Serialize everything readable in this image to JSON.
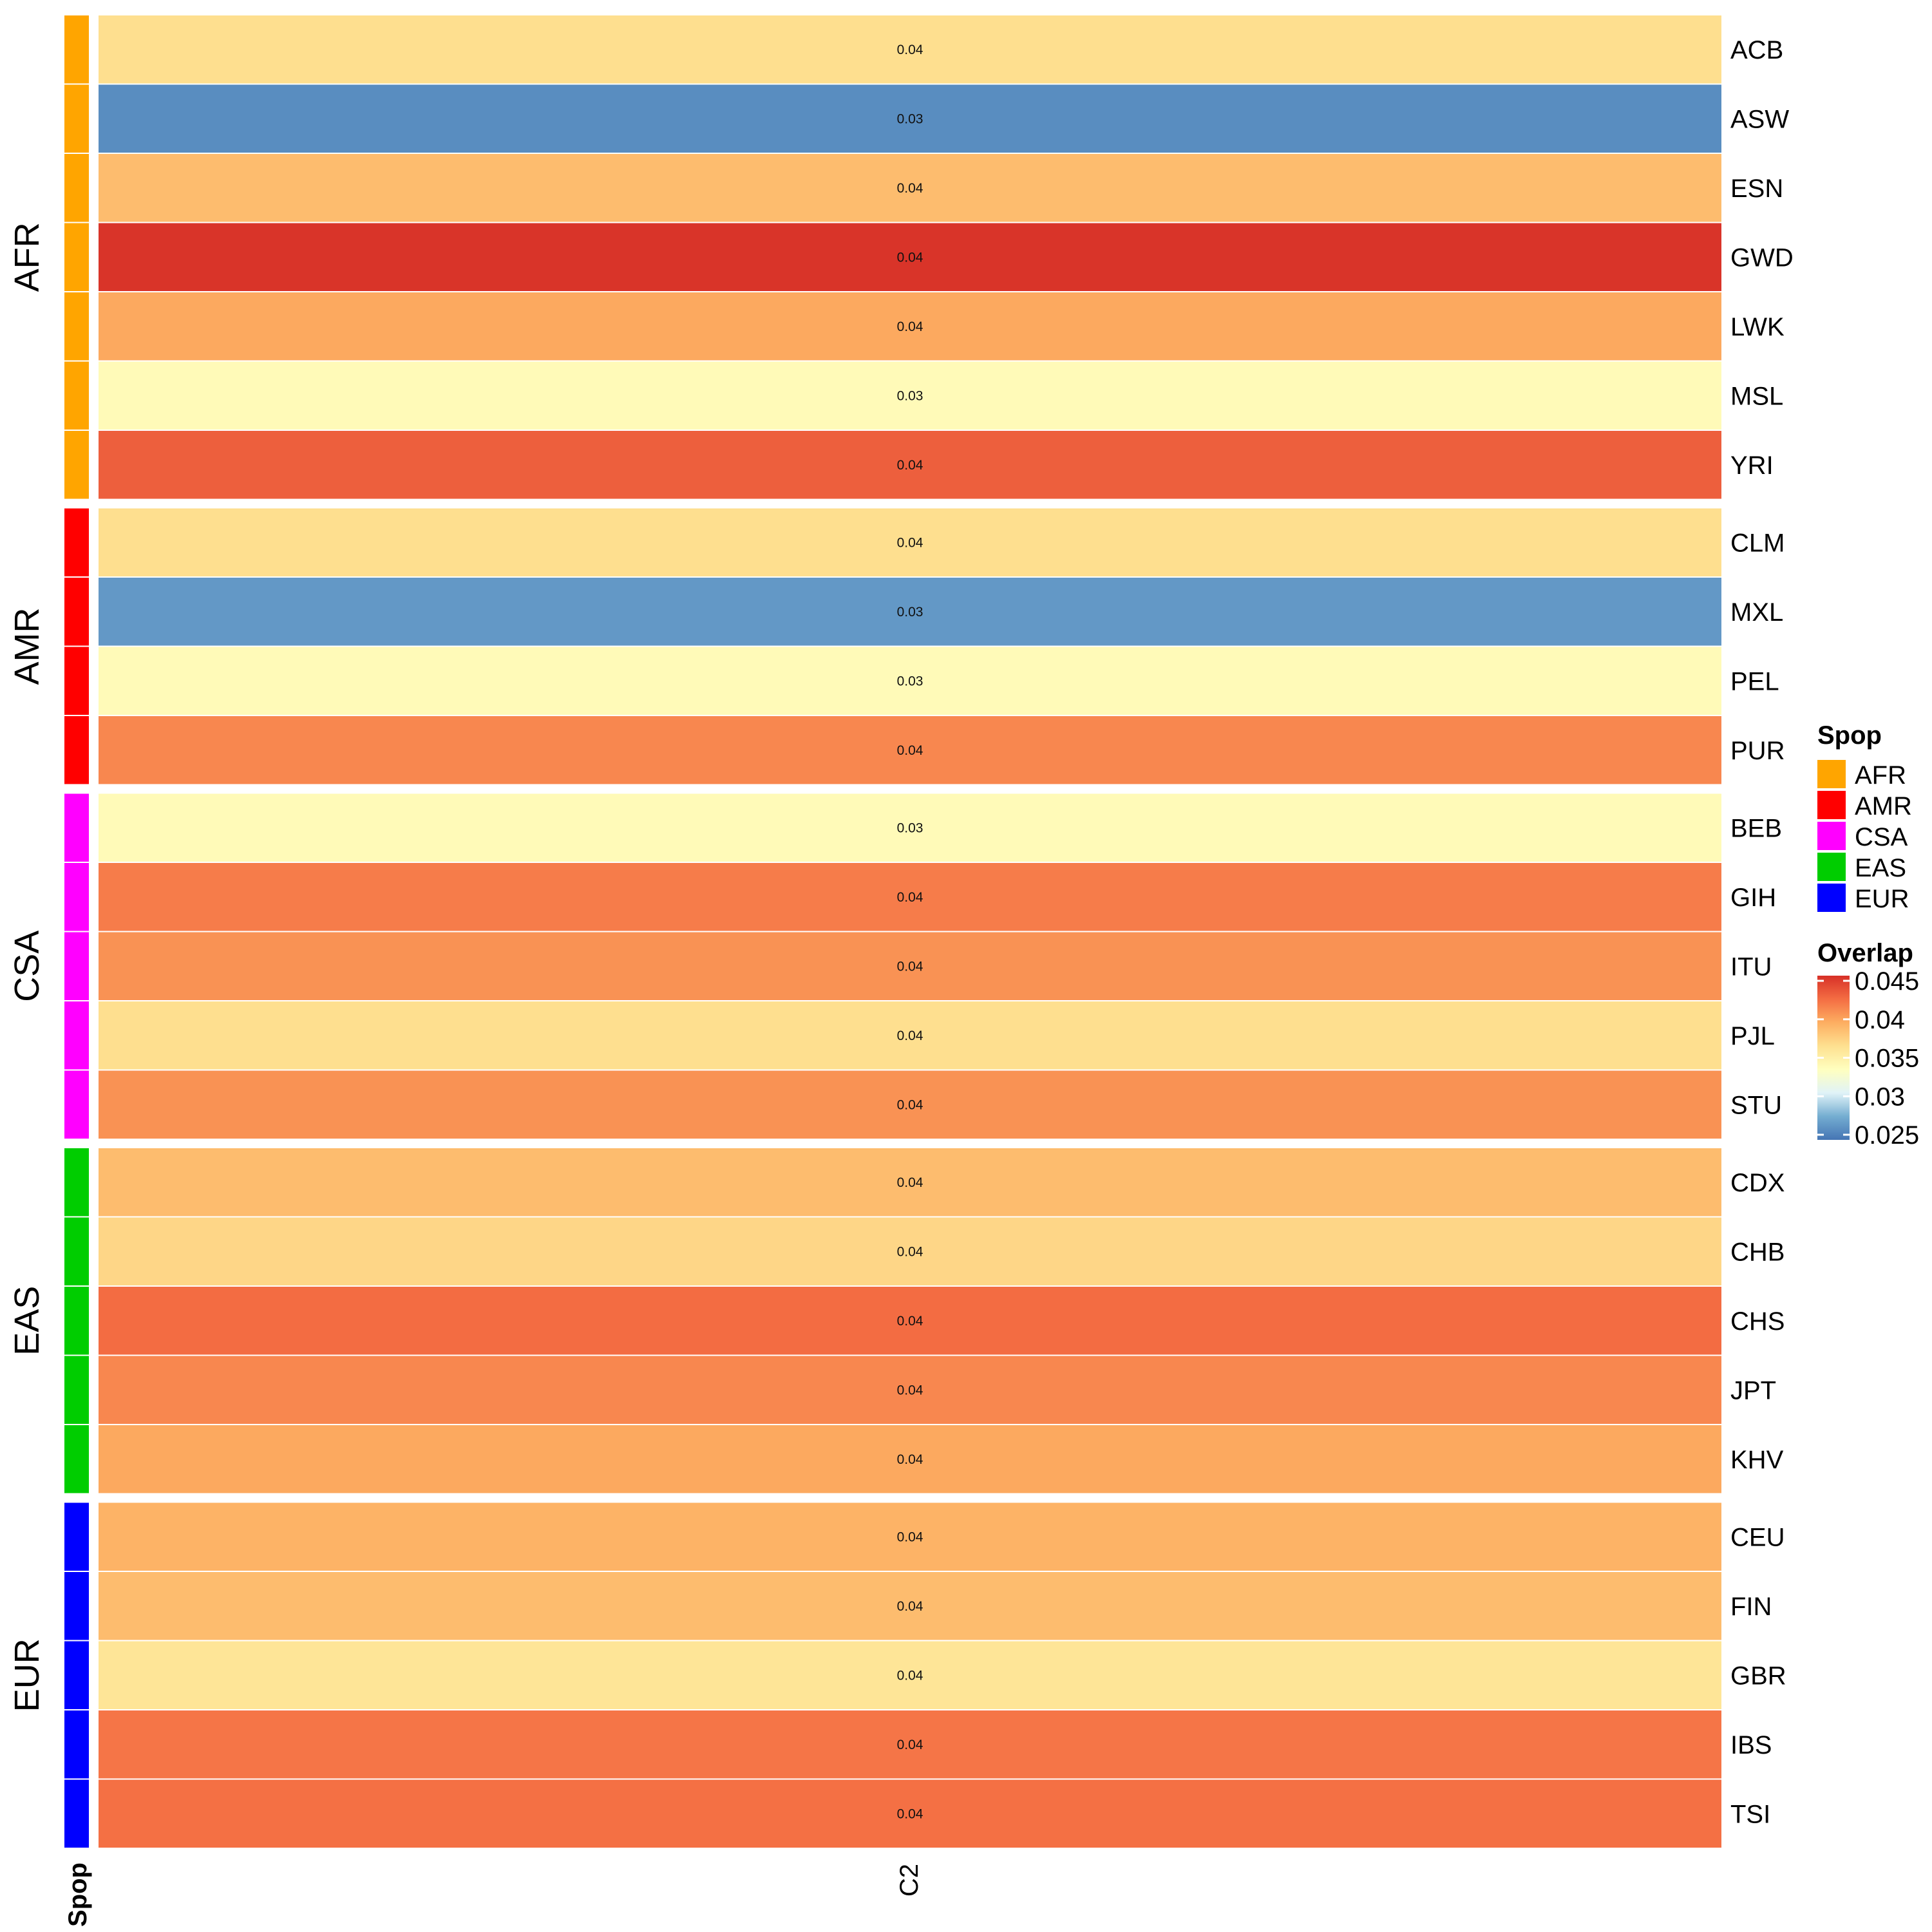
{
  "chart_data": {
    "type": "heatmap",
    "columns": [
      "C2"
    ],
    "rows": [
      "ACB",
      "ASW",
      "ESN",
      "GWD",
      "LWK",
      "MSL",
      "YRI",
      "CLM",
      "MXL",
      "PEL",
      "PUR",
      "BEB",
      "GIH",
      "ITU",
      "PJL",
      "STU",
      "CDX",
      "CHB",
      "CHS",
      "JPT",
      "KHV",
      "CEU",
      "FIN",
      "GBR",
      "IBS",
      "TSI"
    ],
    "row_groups": [
      {
        "name": "AFR",
        "rows": [
          "ACB",
          "ASW",
          "ESN",
          "GWD",
          "LWK",
          "MSL",
          "YRI"
        ]
      },
      {
        "name": "AMR",
        "rows": [
          "CLM",
          "MXL",
          "PEL",
          "PUR"
        ]
      },
      {
        "name": "CSA",
        "rows": [
          "BEB",
          "GIH",
          "ITU",
          "PJL",
          "STU"
        ]
      },
      {
        "name": "EAS",
        "rows": [
          "CDX",
          "CHB",
          "CHS",
          "JPT",
          "KHV"
        ]
      },
      {
        "name": "EUR",
        "rows": [
          "CEU",
          "FIN",
          "GBR",
          "IBS",
          "TSI"
        ]
      }
    ],
    "values": [
      0.0365,
      0.0262,
      0.0385,
      0.0448,
      0.0395,
      0.034,
      0.0428,
      0.0365,
      0.0268,
      0.034,
      0.041,
      0.034,
      0.0415,
      0.0405,
      0.0365,
      0.0405,
      0.0385,
      0.037,
      0.0422,
      0.041,
      0.0395,
      0.039,
      0.0385,
      0.036,
      0.0418,
      0.042
    ],
    "cell_labels": [
      "0.04",
      "0.03",
      "0.04",
      "0.04",
      "0.04",
      "0.03",
      "0.04",
      "0.04",
      "0.03",
      "0.03",
      "0.04",
      "0.03",
      "0.04",
      "0.04",
      "0.04",
      "0.04",
      "0.04",
      "0.04",
      "0.04",
      "0.04",
      "0.04",
      "0.04",
      "0.04",
      "0.04",
      "0.04",
      "0.04"
    ],
    "annotation": {
      "title": "Spop",
      "legend": [
        {
          "label": "AFR",
          "color": "#FFA500"
        },
        {
          "label": "AMR",
          "color": "#FF0000"
        },
        {
          "label": "CSA",
          "color": "#FF00FF"
        },
        {
          "label": "EAS",
          "color": "#00CD00"
        },
        {
          "label": "EUR",
          "color": "#0000FF"
        }
      ]
    },
    "colorbar": {
      "title": "Overlap",
      "range": [
        0.025,
        0.045
      ],
      "ticks": [
        "0.045",
        "0.04",
        "0.035",
        "0.03",
        "0.025"
      ],
      "tick_values": [
        0.045,
        0.04,
        0.035,
        0.03,
        0.025
      ],
      "palette": [
        "#4575B4",
        "#74ADD1",
        "#E0F3F8",
        "#FFFFBF",
        "#FEE090",
        "#FDAE61",
        "#F46D43",
        "#D73027"
      ]
    },
    "bottom_label": "Spop"
  }
}
